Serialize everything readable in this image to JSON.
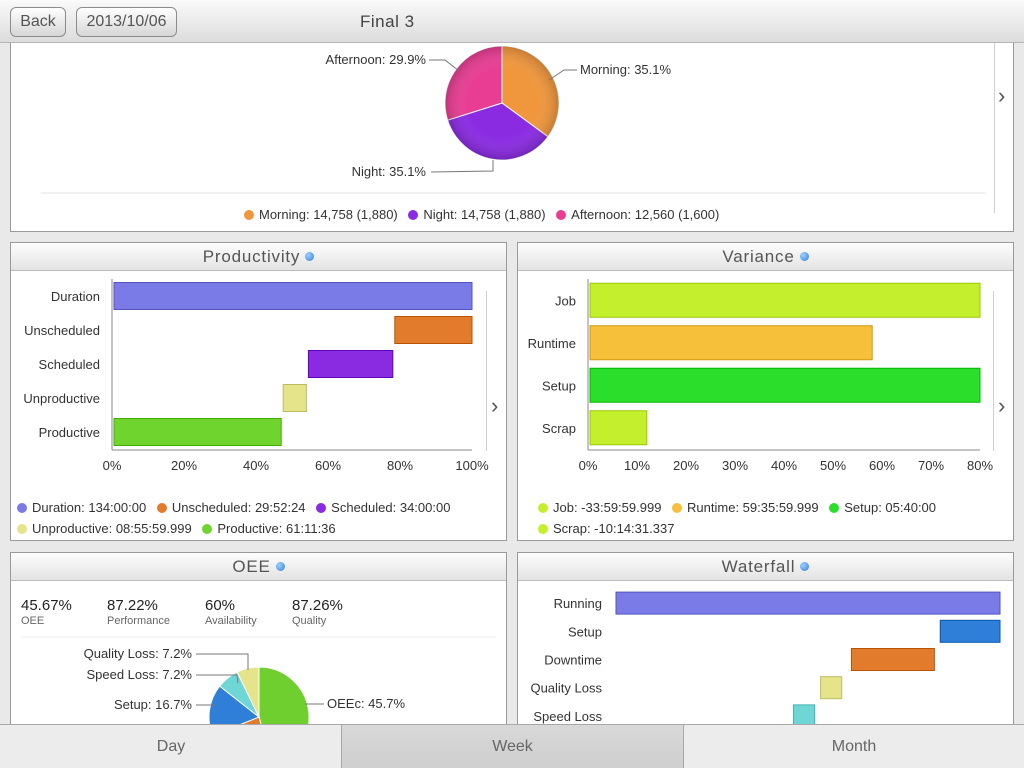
{
  "header": {
    "back_label": "Back",
    "date_label": "2013/10/06",
    "title": "Final 3"
  },
  "shift_pie": {
    "labels": {
      "afternoon": "Afternoon: 29.9%",
      "morning": "Morning: 35.1%",
      "night": "Night: 35.1%"
    },
    "legend": [
      {
        "text": "Morning: 14,758 (1,880)",
        "color": "#f0963c"
      },
      {
        "text": "Night: 14,758 (1,880)",
        "color": "#8a2be2"
      },
      {
        "text": "Afternoon: 12,560 (1,600)",
        "color": "#e83d93"
      }
    ]
  },
  "productivity": {
    "title": "Productivity",
    "legend": [
      {
        "text": "Duration: 134:00:00",
        "color": "#7b7be8"
      },
      {
        "text": "Unscheduled: 29:52:24",
        "color": "#e37b2c"
      },
      {
        "text": "Scheduled: 34:00:00",
        "color": "#8a2be2"
      },
      {
        "text": "Unproductive: 08:55:59.999",
        "color": "#e6e48a"
      },
      {
        "text": "Productive: 61:11:36",
        "color": "#6fd42e"
      }
    ]
  },
  "variance": {
    "title": "Variance",
    "legend": [
      {
        "text": "Job: -33:59:59.999",
        "color": "#c4ef2c"
      },
      {
        "text": "Runtime: 59:35:59.999",
        "color": "#f6c03a"
      },
      {
        "text": "Setup: 05:40:00",
        "color": "#2cde2c"
      },
      {
        "text": "Scrap: -10:14:31.337",
        "color": "#c4ef2c"
      }
    ]
  },
  "oee": {
    "title": "OEE",
    "stats": [
      {
        "value": "45.67%",
        "label": "OEE"
      },
      {
        "value": "87.22%",
        "label": "Performance"
      },
      {
        "value": "60%",
        "label": "Availability"
      },
      {
        "value": "87.26%",
        "label": "Quality"
      }
    ],
    "pie_labels": {
      "quality_loss": "Quality Loss: 7.2%",
      "speed_loss": "Speed Loss: 7.2%",
      "setup": "Setup: 16.7%",
      "oeec": "OEEc: 45.7%"
    }
  },
  "waterfall": {
    "title": "Waterfall"
  },
  "chart_data": [
    {
      "type": "pie",
      "labels": [
        "Morning",
        "Night",
        "Afternoon"
      ],
      "values": [
        35.1,
        35.1,
        29.9
      ],
      "colors": [
        "#f0963c",
        "#8a2be2",
        "#e83d93"
      ]
    },
    {
      "type": "bar",
      "orientation": "horizontal",
      "title": "Productivity",
      "categories": [
        "Duration",
        "Unscheduled",
        "Scheduled",
        "Unproductive",
        "Productive"
      ],
      "ranges": [
        [
          0,
          100
        ],
        [
          78,
          100
        ],
        [
          54,
          78
        ],
        [
          47,
          54
        ],
        [
          0,
          47
        ]
      ],
      "colors": [
        "#7b7be8",
        "#e37b2c",
        "#8a2be2",
        "#e6e48a",
        "#6fd42e"
      ],
      "xticks": [
        "0%",
        "20%",
        "40%",
        "60%",
        "80%",
        "100%"
      ],
      "xlim": [
        0,
        100
      ]
    },
    {
      "type": "bar",
      "orientation": "horizontal",
      "title": "Variance",
      "categories": [
        "Job",
        "Runtime",
        "Setup",
        "Scrap"
      ],
      "values": [
        80,
        58,
        80,
        12
      ],
      "colors": [
        "#c4ef2c",
        "#f6c03a",
        "#2cde2c",
        "#c4ef2c"
      ],
      "xticks": [
        "0%",
        "10%",
        "20%",
        "30%",
        "40%",
        "50%",
        "60%",
        "70%",
        "80%"
      ],
      "xlim": [
        0,
        80
      ]
    },
    {
      "type": "pie",
      "title": "OEE",
      "labels": [
        "OEEc",
        "Setup",
        "Speed Loss",
        "Quality Loss"
      ],
      "values": [
        45.7,
        16.7,
        7.2,
        7.2
      ],
      "colors": [
        "#6fcf2e",
        "#2f7fd8",
        "#6fd6d6",
        "#e6e48a"
      ]
    },
    {
      "type": "bar",
      "orientation": "horizontal",
      "title": "Waterfall",
      "categories": [
        "Running",
        "Setup",
        "Downtime",
        "Quality Loss",
        "Speed Loss"
      ],
      "ranges": [
        [
          0,
          100
        ],
        [
          84,
          100
        ],
        [
          61,
          83
        ],
        [
          53,
          59
        ],
        [
          46,
          52
        ]
      ],
      "colors": [
        "#7b7be8",
        "#2f7fd8",
        "#e37b2c",
        "#e6e48a",
        "#6fd6d6"
      ]
    }
  ],
  "tabs": [
    "Day",
    "Week",
    "Month"
  ],
  "selected_tab": "Week"
}
